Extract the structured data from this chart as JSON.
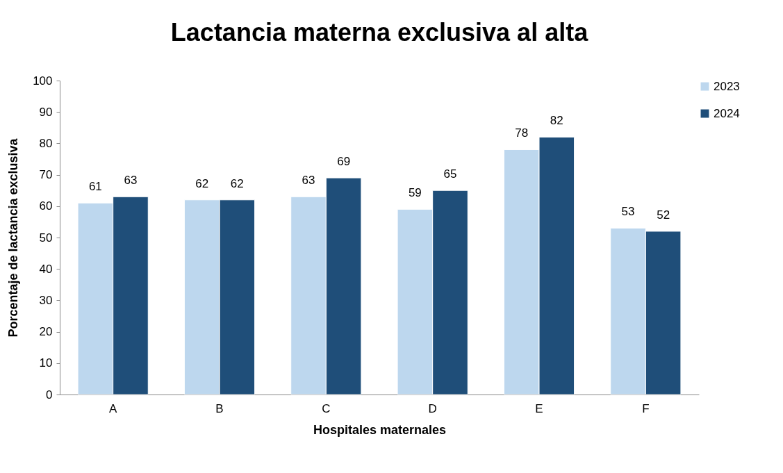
{
  "chart_data": {
    "type": "bar",
    "title": "Lactancia materna exclusiva al alta",
    "xlabel": "Hospitales maternales",
    "ylabel": "Porcentaje de lactancia exclusiva",
    "categories": [
      "A",
      "B",
      "C",
      "D",
      "E",
      "F"
    ],
    "series": [
      {
        "name": "2023",
        "color": "#bdd7ee",
        "values": [
          61,
          62,
          63,
          59,
          78,
          53
        ]
      },
      {
        "name": "2024",
        "color": "#1f4e79",
        "values": [
          63,
          62,
          69,
          65,
          82,
          52
        ]
      }
    ],
    "ylim": [
      0,
      100
    ],
    "yticks": [
      0,
      10,
      20,
      30,
      40,
      50,
      60,
      70,
      80,
      90,
      100
    ],
    "legend": "top right",
    "data_labels": true
  }
}
